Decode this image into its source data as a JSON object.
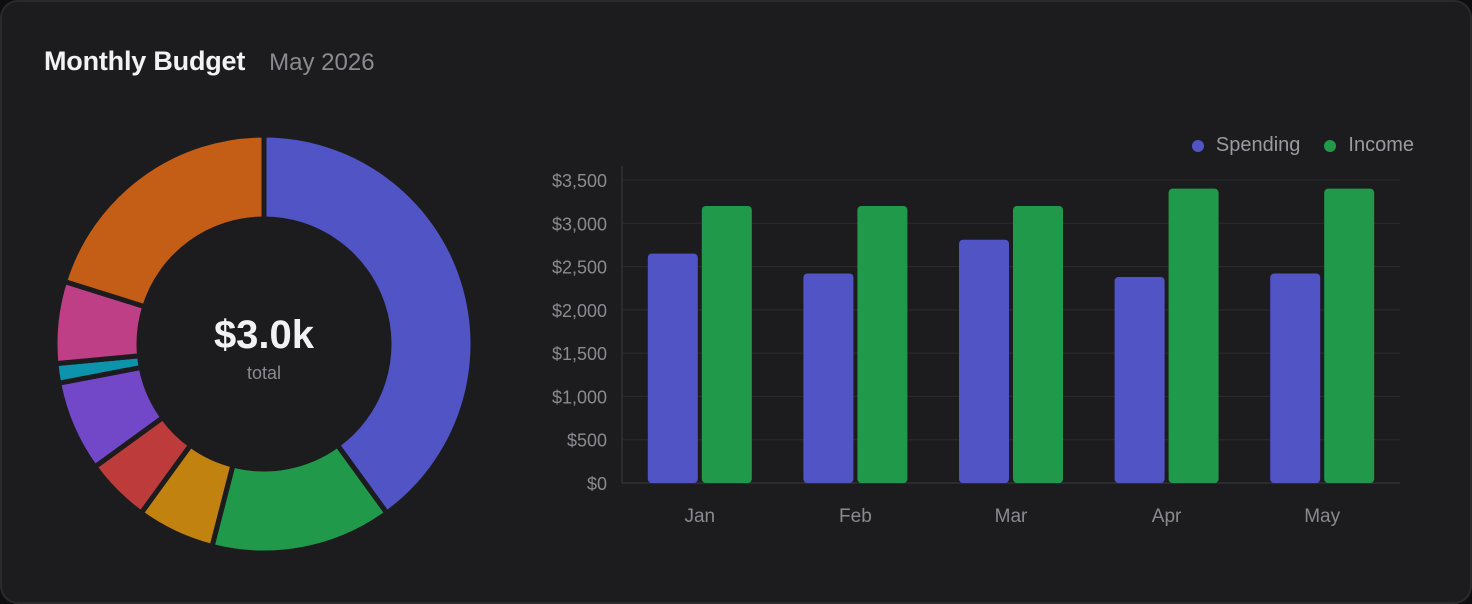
{
  "header": {
    "title": "Monthly Budget",
    "subtitle": "May 2026"
  },
  "donut": {
    "center_value": "$3.0k",
    "center_label": "total"
  },
  "colors": {
    "spending": "#5154c4",
    "income": "#21994b",
    "background": "#1c1c1f"
  },
  "chart_data": [
    {
      "type": "pie",
      "subtype": "donut",
      "values": [
        1200,
        420,
        180,
        150,
        210,
        45,
        190,
        605
      ],
      "colors": [
        "#5154c4",
        "#21994b",
        "#c2820f",
        "#be3b3b",
        "#7248c8",
        "#0e93ad",
        "#be3f86",
        "#c45e16"
      ]
    },
    {
      "type": "bar",
      "categories": [
        "Jan",
        "Feb",
        "Mar",
        "Apr",
        "May"
      ],
      "series": [
        {
          "name": "Spending",
          "values": [
            2650,
            2420,
            2810,
            2380,
            2420
          ]
        },
        {
          "name": "Income",
          "values": [
            3200,
            3200,
            3200,
            3400,
            3400
          ]
        }
      ],
      "ylim": [
        0,
        3500
      ],
      "yticks": [
        0,
        500,
        1000,
        1500,
        2000,
        2500,
        3000,
        3500
      ],
      "ytick_labels": [
        "$0",
        "$500",
        "$1,000",
        "$1,500",
        "$2,000",
        "$2,500",
        "$3,000",
        "$3,500"
      ],
      "grid": true,
      "legend": "top-right"
    }
  ]
}
